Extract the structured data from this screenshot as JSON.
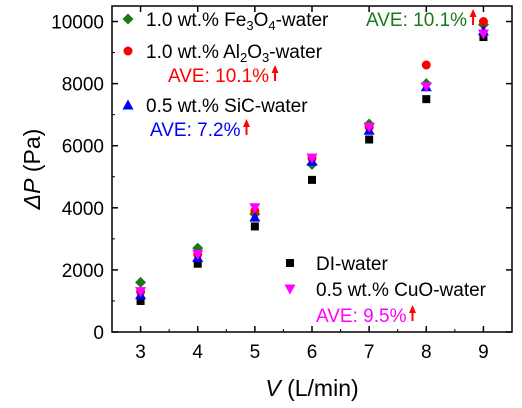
{
  "chart_data": {
    "type": "scatter",
    "xlabel": {
      "italic": "V",
      "unit": "(L/min)"
    },
    "ylabel": {
      "italic": "ΔP",
      "unit": "(Pa)"
    },
    "xlim": [
      2.5,
      9.5
    ],
    "ylim": [
      0,
      10500
    ],
    "xticks": [
      3,
      4,
      5,
      6,
      7,
      8,
      9
    ],
    "yticks": [
      0,
      2000,
      4000,
      6000,
      8000,
      10000
    ],
    "grid": false,
    "x": [
      3,
      4,
      5,
      6,
      7,
      8,
      9
    ],
    "series": [
      {
        "name": "DI-water",
        "marker": "square",
        "color": "#000000",
        "values": [
          1000,
          2200,
          3400,
          4900,
          6200,
          7500,
          9500
        ]
      },
      {
        "name": "1.0 wt.% Fe3O4-water",
        "name_parts": [
          "1.0 wt.% Fe",
          "3",
          "O",
          "4",
          "-water"
        ],
        "marker": "diamond",
        "color": "#1a7a1a",
        "values": [
          1600,
          2700,
          3800,
          5400,
          6700,
          8000,
          9900
        ]
      },
      {
        "name": "1.0 wt.% Al2O3-water",
        "name_parts": [
          "1.0 wt.% Al",
          "2",
          "O",
          "3",
          "-water"
        ],
        "marker": "circle",
        "color": "#ff0000",
        "values": [
          1300,
          2500,
          3900,
          5600,
          6600,
          8600,
          10000
        ]
      },
      {
        "name": "0.5 wt.% SiC-water",
        "marker": "triangle-up",
        "color": "#0000ff",
        "values": [
          1200,
          2400,
          3700,
          5500,
          6500,
          7900,
          9700
        ]
      },
      {
        "name": "0.5 wt.% CuO-water",
        "marker": "triangle-down",
        "color": "#ff00ff",
        "values": [
          1300,
          2500,
          4000,
          5600,
          6600,
          7900,
          9600
        ]
      }
    ],
    "annotations": [
      {
        "series": "1.0 wt.% Fe3O4-water",
        "text": "AVE: 10.1%",
        "color": "#1a7a1a"
      },
      {
        "series": "1.0 wt.% Al2O3-water",
        "text": "AVE: 10.1%",
        "color": "#ff0000"
      },
      {
        "series": "0.5 wt.% SiC-water",
        "text": "AVE: 7.2%",
        "color": "#0000ff"
      },
      {
        "series": "0.5 wt.% CuO-water",
        "text": "AVE: 9.5%",
        "color": "#ff00ff"
      }
    ],
    "arrow_color": "#ff0000"
  }
}
